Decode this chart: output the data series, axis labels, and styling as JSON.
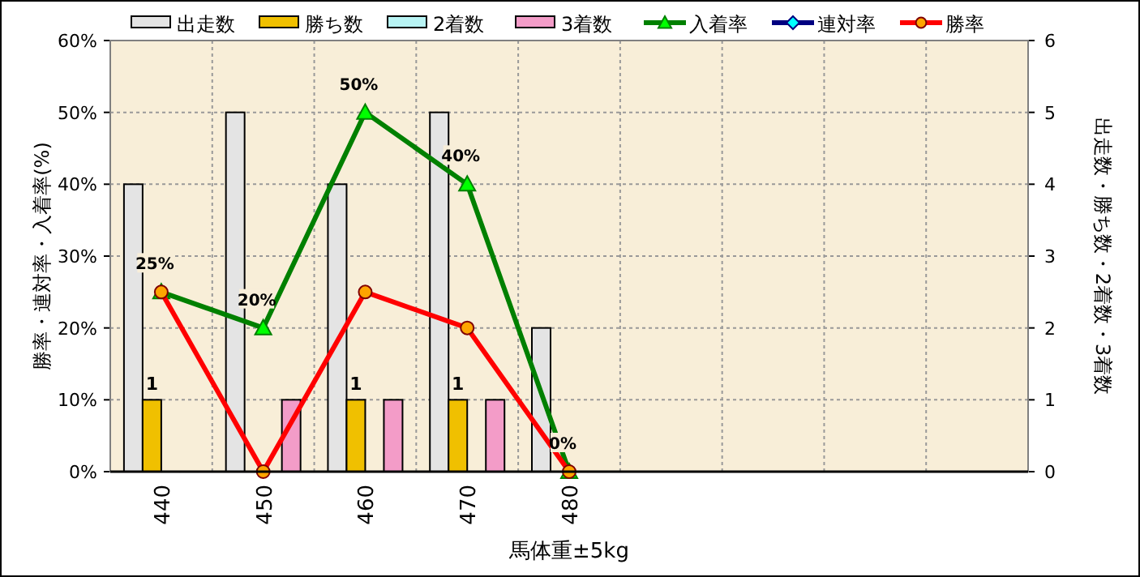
{
  "chart_data": {
    "type": "bar",
    "xlabel": "馬体重±5kg",
    "ylabel": "勝率・連対率・入着率(%)",
    "y2label": "出走数・勝ち数・2着数・3着数",
    "categories": [
      "440",
      "450",
      "460",
      "470",
      "480",
      null,
      null,
      null,
      null
    ],
    "ylim": [
      0,
      60
    ],
    "yticks": [
      {
        "value": 0,
        "label": "0%"
      },
      {
        "value": 10,
        "label": "10%"
      },
      {
        "value": 20,
        "label": "20%"
      },
      {
        "value": 30,
        "label": "30%"
      },
      {
        "value": 40,
        "label": "40%"
      },
      {
        "value": 50,
        "label": "50%"
      },
      {
        "value": 60,
        "label": "60%"
      }
    ],
    "y2lim": [
      0,
      6
    ],
    "y2ticks": [
      0,
      1,
      2,
      3,
      4,
      5,
      6
    ],
    "grid": true,
    "legend": "top",
    "series": [
      {
        "name": "出走数",
        "type": "bar",
        "axis": "y2",
        "color": "#e4e4e4",
        "values": [
          4,
          5,
          4,
          5,
          2,
          null,
          null,
          null,
          null
        ]
      },
      {
        "name": "勝ち数",
        "type": "bar",
        "axis": "y2",
        "color": "#f0c000",
        "values": [
          1,
          0,
          1,
          1,
          0,
          null,
          null,
          null,
          null
        ],
        "value_labels": [
          "1",
          null,
          "1",
          "1",
          null,
          null,
          null,
          null,
          null
        ]
      },
      {
        "name": "2着数",
        "type": "bar",
        "axis": "y2",
        "color": "#b8f4f4",
        "values": [
          0,
          0,
          0,
          0,
          0,
          null,
          null,
          null,
          null
        ]
      },
      {
        "name": "3着数",
        "type": "bar",
        "axis": "y2",
        "color": "#f39cc8",
        "values": [
          0,
          1,
          1,
          1,
          0,
          null,
          null,
          null,
          null
        ]
      },
      {
        "name": "入着率",
        "type": "line",
        "axis": "y",
        "color": "#008000",
        "marker": "triangle",
        "values": [
          25,
          20,
          50,
          40,
          0,
          null,
          null,
          null,
          null
        ],
        "value_labels": [
          "25%",
          "20%",
          "50%",
          "40%",
          "0%",
          null,
          null,
          null,
          null
        ]
      },
      {
        "name": "連対率",
        "type": "line",
        "axis": "y",
        "color": "#000080",
        "marker": "diamond",
        "values": [
          null,
          null,
          null,
          null,
          null,
          null,
          null,
          null,
          null
        ]
      },
      {
        "name": "勝率",
        "type": "line",
        "axis": "y",
        "color": "#ff0000",
        "marker": "circle",
        "values": [
          25,
          0,
          25,
          20,
          0,
          null,
          null,
          null,
          null
        ]
      }
    ]
  }
}
